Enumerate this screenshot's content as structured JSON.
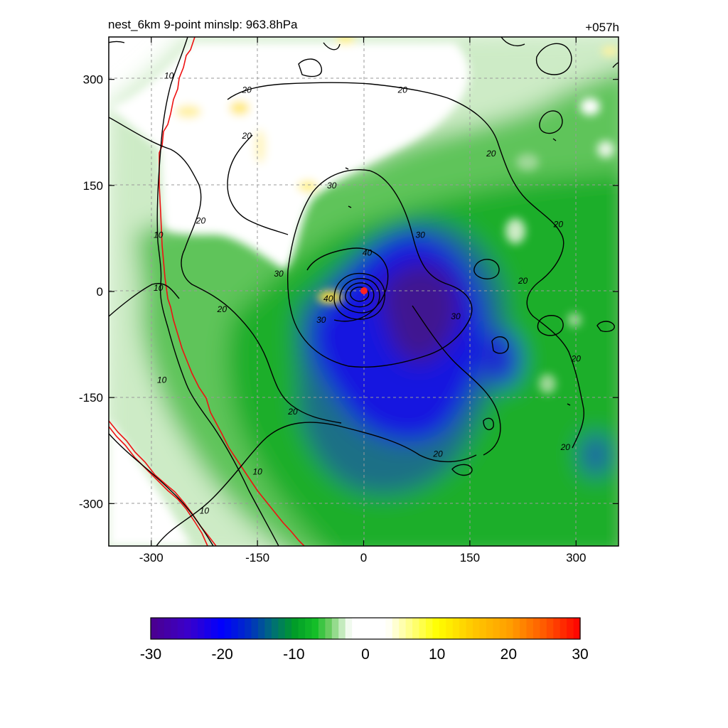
{
  "chart_data": {
    "type": "heatmap",
    "title_left": "nest_6km  9-point minslp: 963.8hPa",
    "title_right": "+057h",
    "x_ticks": [
      -300,
      -150,
      0,
      150,
      300
    ],
    "y_ticks": [
      300,
      150,
      0,
      -150,
      -300
    ],
    "xlim": [
      -360,
      360
    ],
    "ylim": [
      -360,
      360
    ],
    "grid": true,
    "shaded_field": {
      "colorbar_ticks": [
        -30,
        -20,
        -10,
        0,
        10,
        20,
        30
      ],
      "range": [
        -30,
        30
      ],
      "minimum_region": {
        "x": 60,
        "y": -30,
        "value": -28
      },
      "positive_patches": [
        {
          "x": -40,
          "y": 10,
          "value": 6
        },
        {
          "x": -80,
          "y": 155,
          "value": 5
        },
        {
          "x": -175,
          "y": 255,
          "value": 4
        },
        {
          "x": -250,
          "y": 255,
          "value": 4
        },
        {
          "x": -30,
          "y": 355,
          "value": 5
        },
        {
          "x": 340,
          "y": 350,
          "value": 4
        }
      ]
    },
    "contours": {
      "levels": [
        10,
        20,
        30,
        40
      ],
      "labels": [
        {
          "text": "10",
          "x": -275,
          "y": 305
        },
        {
          "text": "10",
          "x": -290,
          "y": 80
        },
        {
          "text": "10",
          "x": -290,
          "y": 5
        },
        {
          "text": "10",
          "x": -285,
          "y": -125
        },
        {
          "text": "10",
          "x": -150,
          "y": -255
        },
        {
          "text": "10",
          "x": -225,
          "y": -310
        },
        {
          "text": "20",
          "x": -165,
          "y": 285
        },
        {
          "text": "20",
          "x": 55,
          "y": 285
        },
        {
          "text": "20",
          "x": -165,
          "y": 220
        },
        {
          "text": "20",
          "x": 180,
          "y": 195
        },
        {
          "text": "20",
          "x": -230,
          "y": 100
        },
        {
          "text": "20",
          "x": 275,
          "y": 95
        },
        {
          "text": "20",
          "x": -200,
          "y": -25
        },
        {
          "text": "20",
          "x": 225,
          "y": 15
        },
        {
          "text": "20",
          "x": -100,
          "y": -170
        },
        {
          "text": "20",
          "x": 300,
          "y": -95
        },
        {
          "text": "20",
          "x": 105,
          "y": -230
        },
        {
          "text": "20",
          "x": 285,
          "y": -220
        },
        {
          "text": "30",
          "x": -45,
          "y": 150
        },
        {
          "text": "30",
          "x": 80,
          "y": 80
        },
        {
          "text": "30",
          "x": -120,
          "y": 25
        },
        {
          "text": "30",
          "x": -60,
          "y": -40
        },
        {
          "text": "30",
          "x": 130,
          "y": -35
        },
        {
          "text": "40",
          "x": 5,
          "y": 55
        },
        {
          "text": "40",
          "x": -50,
          "y": -10
        }
      ]
    },
    "red_boundary_lines": true,
    "center_marker": {
      "x": 0,
      "y": 0
    }
  }
}
